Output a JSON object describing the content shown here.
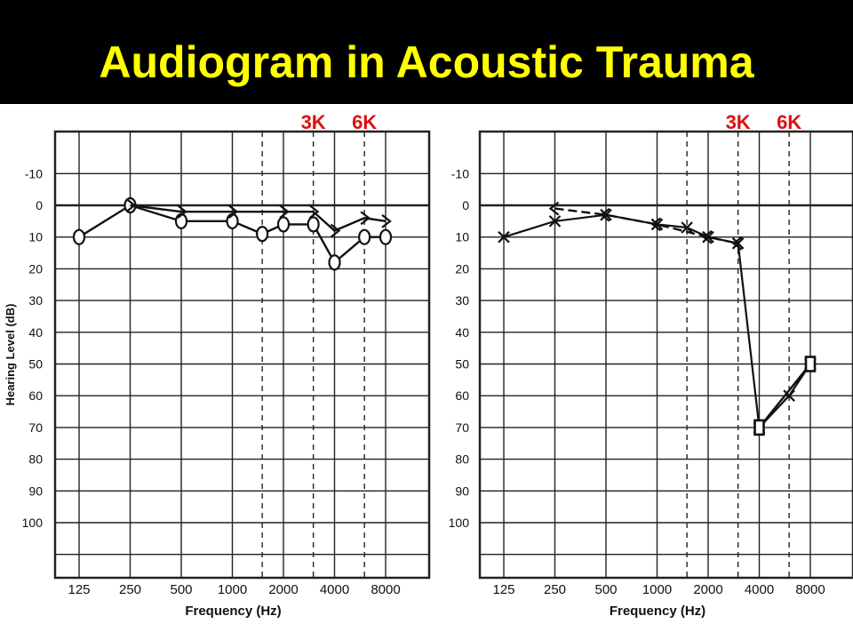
{
  "title": "Audiogram in Acoustic Trauma",
  "colors": {
    "title_bar": "#000000",
    "title_text": "#ffff00",
    "marker_label": "#dd1111",
    "trace": "#111111",
    "grid": "#222222"
  },
  "chart_data": [
    {
      "type": "line",
      "name": "audiogram-normal",
      "xlabel": "Frequency (Hz)",
      "ylabel": "Hearing Level (dB)",
      "x_tick_labels": [
        "125",
        "250",
        "500",
        "1000",
        "2000",
        "4000",
        "8000"
      ],
      "y_tick_labels": [
        "-10",
        "0",
        "10",
        "20",
        "30",
        "40",
        "50",
        "60",
        "70",
        "80",
        "90",
        "100"
      ],
      "ylim": [
        -20,
        115
      ],
      "y_reversed": true,
      "x_scale": "log2",
      "marker_labels": [
        {
          "text": "3K",
          "freq": 3000
        },
        {
          "text": "6K",
          "freq": 6000
        }
      ],
      "gridlines_dashed_at_freq": [
        1500,
        3000,
        6000
      ],
      "series": [
        {
          "symbol": "O",
          "points": [
            {
              "freq": 125,
              "db": 10
            },
            {
              "freq": 250,
              "db": 0
            },
            {
              "freq": 500,
              "db": 5
            },
            {
              "freq": 1000,
              "db": 5
            },
            {
              "freq": 1500,
              "db": 9
            },
            {
              "freq": 2000,
              "db": 6
            },
            {
              "freq": 3000,
              "db": 6
            },
            {
              "freq": 4000,
              "db": 18
            },
            {
              "freq": 6000,
              "db": 10
            },
            {
              "freq": 8000,
              "db": 10
            }
          ]
        },
        {
          "symbol": ">",
          "points": [
            {
              "freq": 250,
              "db": 0
            },
            {
              "freq": 500,
              "db": 2
            },
            {
              "freq": 1000,
              "db": 2
            },
            {
              "freq": 2000,
              "db": 2
            },
            {
              "freq": 3000,
              "db": 2
            },
            {
              "freq": 4000,
              "db": 8
            },
            {
              "freq": 6000,
              "db": 4
            },
            {
              "freq": 8000,
              "db": 5
            }
          ]
        }
      ]
    },
    {
      "type": "line",
      "name": "audiogram-trauma",
      "xlabel": "Frequency (Hz)",
      "ylabel": "",
      "x_tick_labels": [
        "125",
        "250",
        "500",
        "1000",
        "2000",
        "4000",
        "8000"
      ],
      "y_tick_labels": [
        "-10",
        "0",
        "10",
        "20",
        "30",
        "40",
        "50",
        "60",
        "70",
        "80",
        "90",
        "100"
      ],
      "ylim": [
        -20,
        115
      ],
      "y_reversed": true,
      "x_scale": "log2",
      "marker_labels": [
        {
          "text": "3K",
          "freq": 3000
        },
        {
          "text": "6K",
          "freq": 6000
        }
      ],
      "gridlines_dashed_at_freq": [
        1500,
        3000,
        6000
      ],
      "series": [
        {
          "symbol": "X",
          "points": [
            {
              "freq": 125,
              "db": 10
            },
            {
              "freq": 250,
              "db": 5
            },
            {
              "freq": 500,
              "db": 3
            },
            {
              "freq": 1000,
              "db": 6
            },
            {
              "freq": 1500,
              "db": 7
            },
            {
              "freq": 2000,
              "db": 10
            },
            {
              "freq": 3000,
              "db": 12
            },
            {
              "freq": 4000,
              "db": 70
            },
            {
              "freq": 6000,
              "db": 60
            },
            {
              "freq": 8000,
              "db": 50
            }
          ]
        },
        {
          "symbol": "<",
          "points": [
            {
              "freq": 250,
              "db": 1
            },
            {
              "freq": 500,
              "db": 3
            },
            {
              "freq": 1000,
              "db": 6
            },
            {
              "freq": 2000,
              "db": 10
            },
            {
              "freq": 3000,
              "db": 12
            }
          ]
        },
        {
          "symbol": "[",
          "points": [
            {
              "freq": 4000,
              "db": 70
            },
            {
              "freq": 8000,
              "db": 50
            }
          ]
        }
      ]
    }
  ]
}
